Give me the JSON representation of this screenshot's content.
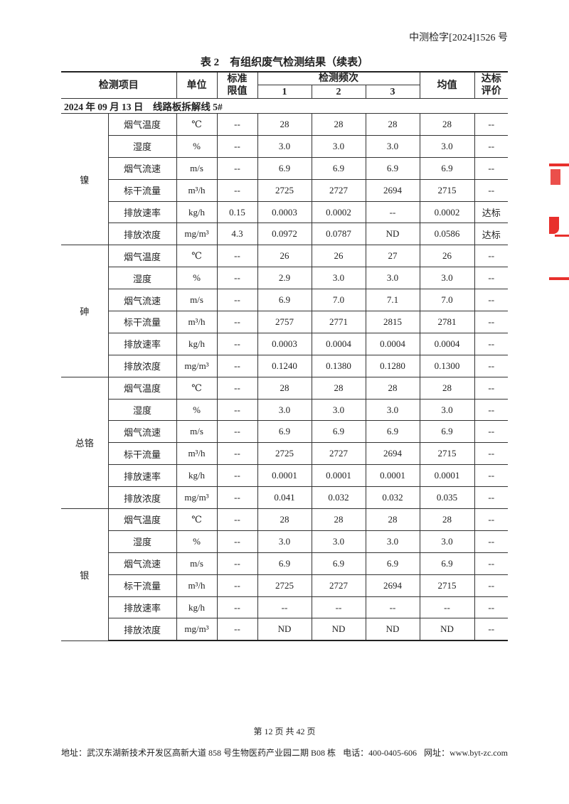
{
  "header": {
    "doc_number": "中测检字[2024]1526 号"
  },
  "table_title": "表 2　有组织废气检测结果（续表）",
  "columns": {
    "item": "检测项目",
    "unit": "单位",
    "limit": "标准\n限值",
    "frequency": "检测频次",
    "f1": "1",
    "f2": "2",
    "f3": "3",
    "mean": "均值",
    "evaluation": "达标\n评价"
  },
  "date_row": "2024 年 09 月 13 日　线路板拆解线 5#",
  "groups": [
    {
      "name": "镍",
      "rows": [
        [
          "烟气温度",
          "℃",
          "--",
          "28",
          "28",
          "28",
          "28",
          "--"
        ],
        [
          "湿度",
          "%",
          "--",
          "3.0",
          "3.0",
          "3.0",
          "3.0",
          "--"
        ],
        [
          "烟气流速",
          "m/s",
          "--",
          "6.9",
          "6.9",
          "6.9",
          "6.9",
          "--"
        ],
        [
          "标干流量",
          "m³/h",
          "--",
          "2725",
          "2727",
          "2694",
          "2715",
          "--"
        ],
        [
          "排放速率",
          "kg/h",
          "0.15",
          "0.0003",
          "0.0002",
          "--",
          "0.0002",
          "达标"
        ],
        [
          "排放浓度",
          "mg/m³",
          "4.3",
          "0.0972",
          "0.0787",
          "ND",
          "0.0586",
          "达标"
        ]
      ]
    },
    {
      "name": "砷",
      "rows": [
        [
          "烟气温度",
          "℃",
          "--",
          "26",
          "26",
          "27",
          "26",
          "--"
        ],
        [
          "湿度",
          "%",
          "--",
          "2.9",
          "3.0",
          "3.0",
          "3.0",
          "--"
        ],
        [
          "烟气流速",
          "m/s",
          "--",
          "6.9",
          "7.0",
          "7.1",
          "7.0",
          "--"
        ],
        [
          "标干流量",
          "m³/h",
          "--",
          "2757",
          "2771",
          "2815",
          "2781",
          "--"
        ],
        [
          "排放速率",
          "kg/h",
          "--",
          "0.0003",
          "0.0004",
          "0.0004",
          "0.0004",
          "--"
        ],
        [
          "排放浓度",
          "mg/m³",
          "--",
          "0.1240",
          "0.1380",
          "0.1280",
          "0.1300",
          "--"
        ]
      ]
    },
    {
      "name": "总铬",
      "rows": [
        [
          "烟气温度",
          "℃",
          "--",
          "28",
          "28",
          "28",
          "28",
          "--"
        ],
        [
          "湿度",
          "%",
          "--",
          "3.0",
          "3.0",
          "3.0",
          "3.0",
          "--"
        ],
        [
          "烟气流速",
          "m/s",
          "--",
          "6.9",
          "6.9",
          "6.9",
          "6.9",
          "--"
        ],
        [
          "标干流量",
          "m³/h",
          "--",
          "2725",
          "2727",
          "2694",
          "2715",
          "--"
        ],
        [
          "排放速率",
          "kg/h",
          "--",
          "0.0001",
          "0.0001",
          "0.0001",
          "0.0001",
          "--"
        ],
        [
          "排放浓度",
          "mg/m³",
          "--",
          "0.041",
          "0.032",
          "0.032",
          "0.035",
          "--"
        ]
      ]
    },
    {
      "name": "银",
      "rows": [
        [
          "烟气温度",
          "℃",
          "--",
          "28",
          "28",
          "28",
          "28",
          "--"
        ],
        [
          "湿度",
          "%",
          "--",
          "3.0",
          "3.0",
          "3.0",
          "3.0",
          "--"
        ],
        [
          "烟气流速",
          "m/s",
          "--",
          "6.9",
          "6.9",
          "6.9",
          "6.9",
          "--"
        ],
        [
          "标干流量",
          "m³/h",
          "--",
          "2725",
          "2727",
          "2694",
          "2715",
          "--"
        ],
        [
          "排放速率",
          "kg/h",
          "--",
          "--",
          "--",
          "--",
          "--",
          "--"
        ],
        [
          "排放浓度",
          "mg/m³",
          "--",
          "ND",
          "ND",
          "ND",
          "ND",
          "--"
        ]
      ]
    }
  ],
  "footer": {
    "page": "第 12 页 共 42 页",
    "address": "地址：武汉东湖新技术开发区高新大道 858 号生物医药产业园二期 B08 栋",
    "phone": "电话：400-0405-606",
    "website": "网址：www.byt-zc.com"
  },
  "colors": {
    "seal": "#e8302c",
    "text": "#222222"
  }
}
